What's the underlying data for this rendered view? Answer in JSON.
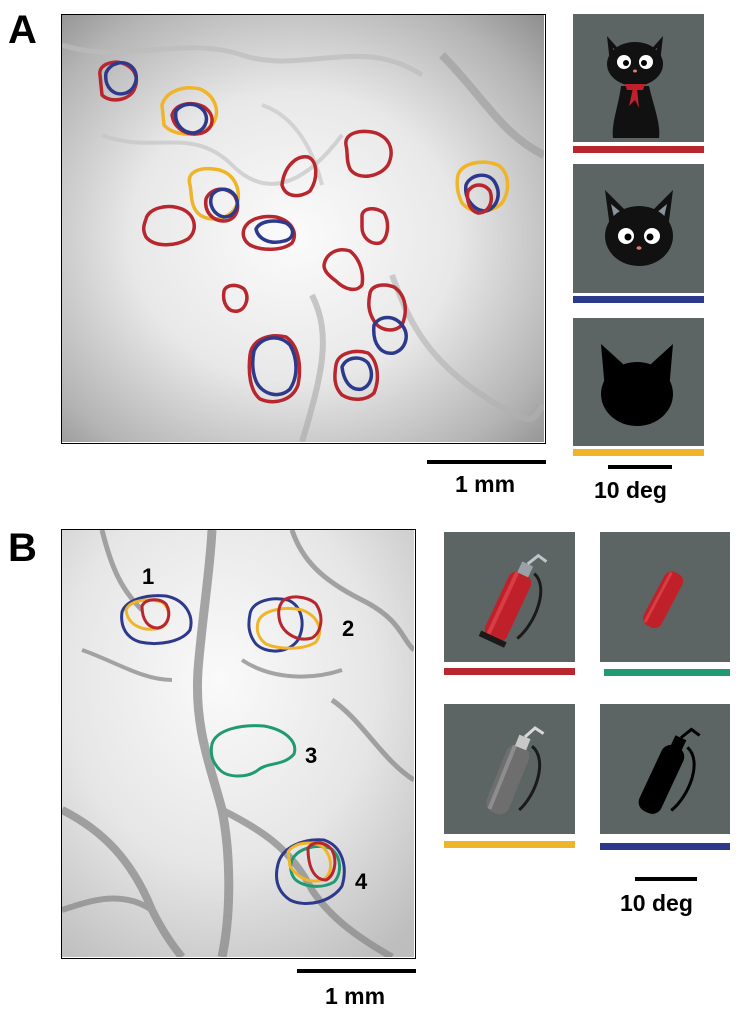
{
  "panel_a": {
    "letter": "A",
    "scale_bar_map": "1 mm",
    "scale_bar_stimulus": "10 deg",
    "stimuli": [
      {
        "name": "cat-toy-full",
        "color": "#b8262e"
      },
      {
        "name": "cat-toy-head",
        "color": "#2d3a8c"
      },
      {
        "name": "cat-head-silhouette",
        "color": "#f0b428"
      }
    ]
  },
  "panel_b": {
    "letter": "B",
    "scale_bar_map": "1 mm",
    "scale_bar_stimulus": "10 deg",
    "regions": [
      "1",
      "2",
      "3",
      "4"
    ],
    "stimuli": [
      {
        "name": "fire-extinguisher-color",
        "color": "#b8262e"
      },
      {
        "name": "extinguisher-body-only",
        "color": "#1f9a73"
      },
      {
        "name": "fire-extinguisher-gray",
        "color": "#f0b428"
      },
      {
        "name": "extinguisher-silhouette",
        "color": "#2d3a8c"
      }
    ]
  },
  "colors": {
    "red": "#b8262e",
    "blue": "#2d3a8c",
    "yellow": "#f0b428",
    "green": "#1f9a73",
    "background": "#5c6563"
  }
}
